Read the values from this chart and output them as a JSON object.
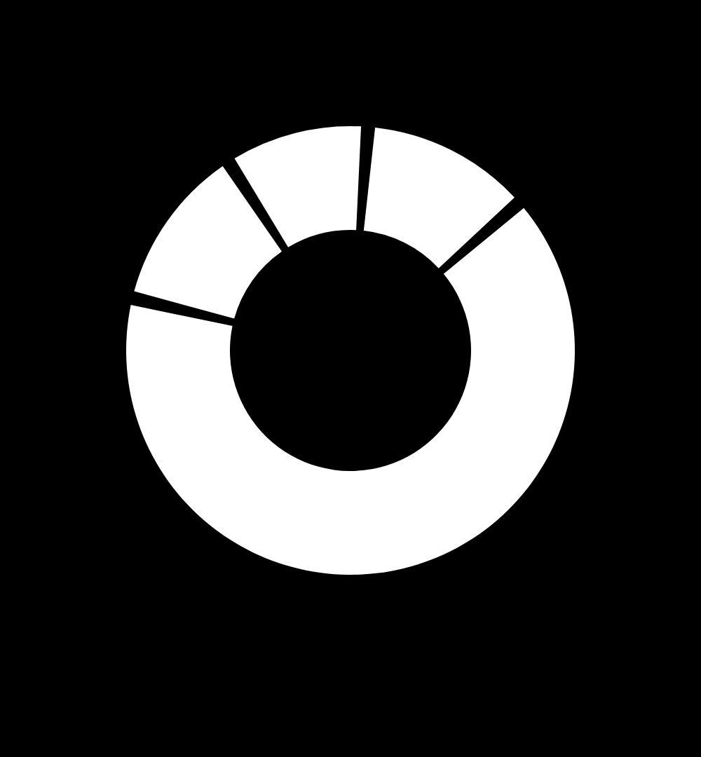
{
  "chart_data": {
    "type": "donut",
    "categories": [
      null,
      null,
      null,
      null
    ],
    "values": [
      12.3,
      65.2,
      12.1,
      10.4
    ],
    "colors": [
      "#ffffff",
      "#ffffff",
      "#ffffff",
      "#ffffff"
    ]
  }
}
